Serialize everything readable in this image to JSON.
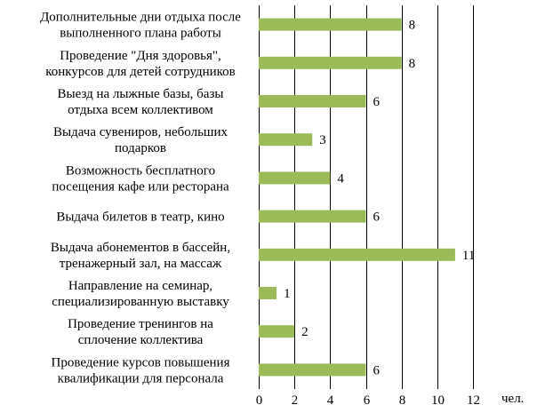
{
  "chart_data": {
    "type": "bar",
    "orientation": "horizontal",
    "categories": [
      [
        "Дополнительные дни отдыха после",
        "выполненного плана работы"
      ],
      [
        "Проведение \"Дня здоровья\",",
        "конкурсов для детей сотрудников"
      ],
      [
        "Выезд на лыжные базы, базы",
        "отдыха всем коллективом"
      ],
      [
        "Выдача сувениров, небольших",
        "подарков"
      ],
      [
        "Возможность бесплатного",
        "посещения кафе или ресторана"
      ],
      [
        "Выдача билетов в театр, кино"
      ],
      [
        "Выдача абонементов в бассейн,",
        "тренажерный зал, на массаж"
      ],
      [
        "Направление на семинар,",
        "специализированную выставку"
      ],
      [
        "Проведение тренингов на",
        "сплочение коллектива"
      ],
      [
        "Проведение курсов повышения",
        "квалификации для персонала"
      ]
    ],
    "values": [
      8,
      8,
      6,
      3,
      4,
      6,
      11,
      1,
      2,
      6
    ],
    "xlim": [
      0,
      12
    ],
    "xticks": [
      "0",
      "2",
      "4",
      "6",
      "8",
      "10",
      "12"
    ],
    "xlabel": "чел.",
    "title": "",
    "grid": "vertical",
    "legend": "none",
    "colors": {
      "bar": "#9bbb59",
      "grid": "#000000"
    }
  }
}
